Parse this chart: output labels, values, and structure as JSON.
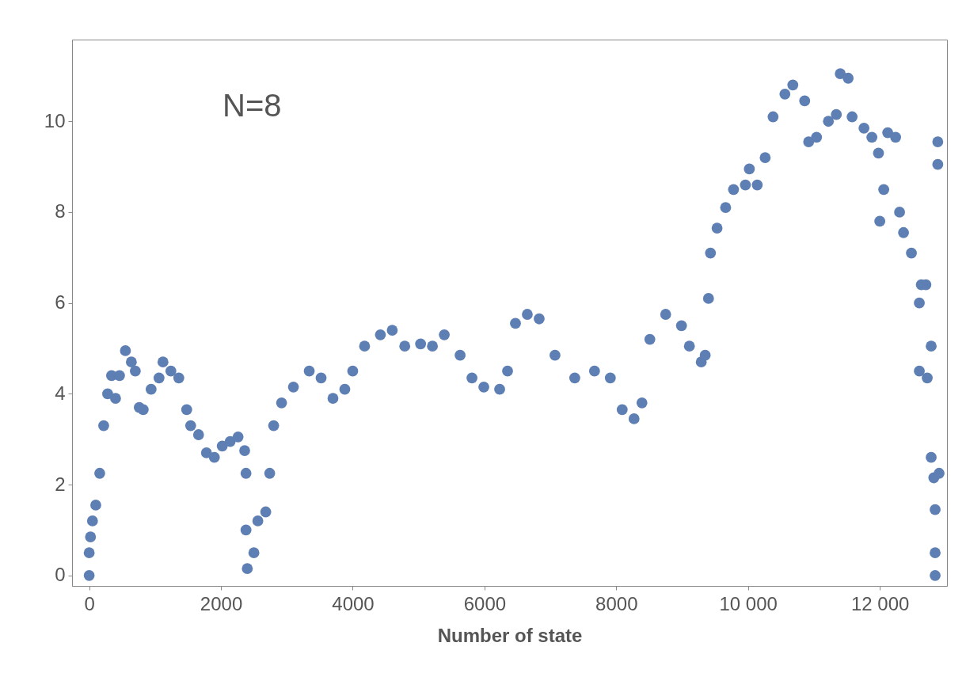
{
  "chart_data": {
    "type": "scatter",
    "xlabel": "Number of state",
    "annotations": [
      "N=8"
    ],
    "xlim": [
      -260,
      13020
    ],
    "ylim": [
      -0.23,
      11.8
    ],
    "xticks": [
      0,
      2000,
      4000,
      6000,
      8000,
      {
        "value": 10000,
        "label": "10 000"
      },
      {
        "value": 12000,
        "label": "12 000"
      }
    ],
    "yticks": [
      0,
      2,
      4,
      6,
      8,
      10
    ],
    "grid": false,
    "marker": "circle",
    "series": [
      {
        "color": "#5e7fb3",
        "x": [
          0,
          0,
          20,
          50,
          100,
          160,
          220,
          280,
          340,
          400,
          460,
          550,
          640,
          700,
          760,
          820,
          940,
          1060,
          1120,
          1240,
          1360,
          1480,
          1540,
          1660,
          1780,
          1900,
          2020,
          2140,
          2260,
          2360,
          2380,
          2380,
          2400,
          2500,
          2560,
          2680,
          2740,
          2800,
          2920,
          3100,
          3340,
          3520,
          3700,
          3880,
          4000,
          4180,
          4420,
          4600,
          4790,
          5030,
          5210,
          5390,
          5630,
          5810,
          5990,
          6230,
          6350,
          6470,
          6650,
          6830,
          7070,
          7370,
          7670,
          7910,
          8090,
          8270,
          8390,
          8510,
          8750,
          8990,
          9110,
          9290,
          9350,
          9400,
          9430,
          9530,
          9660,
          9780,
          9960,
          10020,
          10140,
          10260,
          10380,
          10560,
          10680,
          10860,
          10920,
          11040,
          11220,
          11340,
          11400,
          11520,
          11580,
          11760,
          11880,
          11980,
          12000,
          12060,
          12120,
          12240,
          12300,
          12360,
          12480,
          12600,
          12630,
          12700,
          12600,
          12720,
          12780,
          12780,
          12820,
          12840,
          12840,
          12840,
          12900,
          12880,
          12880
        ],
        "values": [
          0,
          0.5,
          0.85,
          1.2,
          1.55,
          2.25,
          3.3,
          4.0,
          4.4,
          3.9,
          4.4,
          4.95,
          4.7,
          4.5,
          3.7,
          3.65,
          4.1,
          4.35,
          4.7,
          4.5,
          4.35,
          3.65,
          3.3,
          3.1,
          2.7,
          2.6,
          2.85,
          2.95,
          3.05,
          2.75,
          2.25,
          1.0,
          0.15,
          0.5,
          1.2,
          1.4,
          2.25,
          3.3,
          3.8,
          4.15,
          4.5,
          4.35,
          3.9,
          4.1,
          4.5,
          5.05,
          5.3,
          5.4,
          5.05,
          5.1,
          5.05,
          5.3,
          4.85,
          4.35,
          4.15,
          4.1,
          4.5,
          5.55,
          5.75,
          5.65,
          4.85,
          4.35,
          4.5,
          4.35,
          3.65,
          3.45,
          3.8,
          5.2,
          5.75,
          5.5,
          5.05,
          4.7,
          4.85,
          6.1,
          7.1,
          7.65,
          8.1,
          8.5,
          8.6,
          8.95,
          8.6,
          9.2,
          10.1,
          10.6,
          10.8,
          10.45,
          9.55,
          9.65,
          10.0,
          10.15,
          11.05,
          10.95,
          10.1,
          9.85,
          9.65,
          9.3,
          7.8,
          8.5,
          9.75,
          9.65,
          8.0,
          7.55,
          7.1,
          6.0,
          6.4,
          6.4,
          4.5,
          4.35,
          5.05,
          2.6,
          2.15,
          1.45,
          0.5,
          0.0,
          2.25,
          9.55,
          9.05
        ]
      }
    ]
  }
}
